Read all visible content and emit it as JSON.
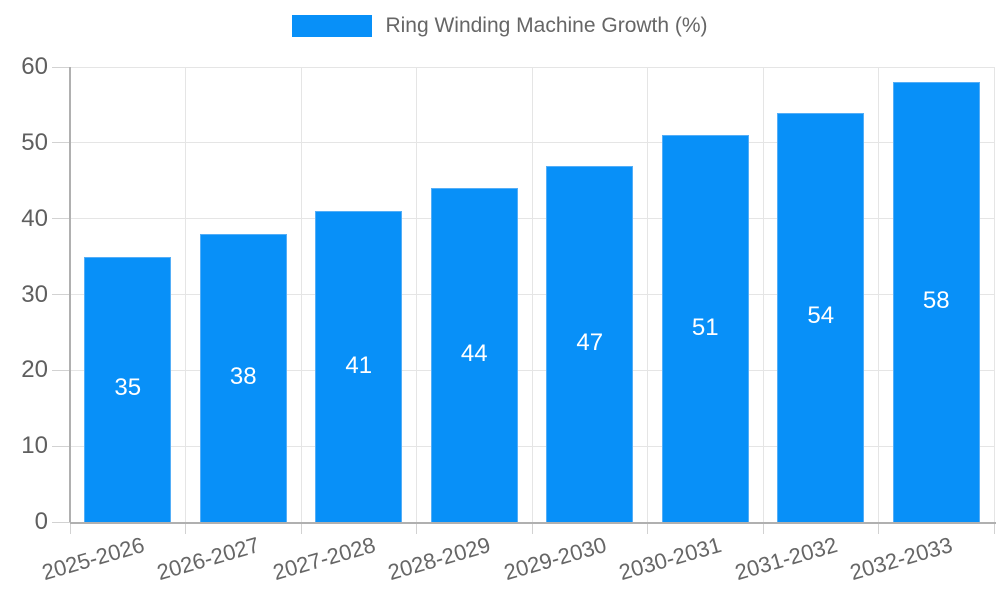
{
  "legend": {
    "label": "Ring Winding Machine Growth (%)"
  },
  "chart_data": {
    "type": "bar",
    "title": "Ring Winding Machine Growth (%)",
    "categories": [
      "2025-2026",
      "2026-2027",
      "2027-2028",
      "2028-2029",
      "2029-2030",
      "2030-2031",
      "2031-2032",
      "2032-2033"
    ],
    "values": [
      35,
      38,
      41,
      44,
      47,
      51,
      54,
      58
    ],
    "xlabel": "",
    "ylabel": "",
    "ylim": [
      0,
      60
    ],
    "yticks": [
      0,
      10,
      20,
      30,
      40,
      50,
      60
    ],
    "grid": true,
    "legend_position": "top",
    "bar_color": "#0890f8",
    "bar_border_color": "#54aef7",
    "value_label_color": "#ffffff",
    "axis_text_color": "#5f5f5f",
    "grid_color": "#e5e5e5",
    "axis_line_color": "#b0b0b0",
    "background_color": "#ffffff"
  }
}
